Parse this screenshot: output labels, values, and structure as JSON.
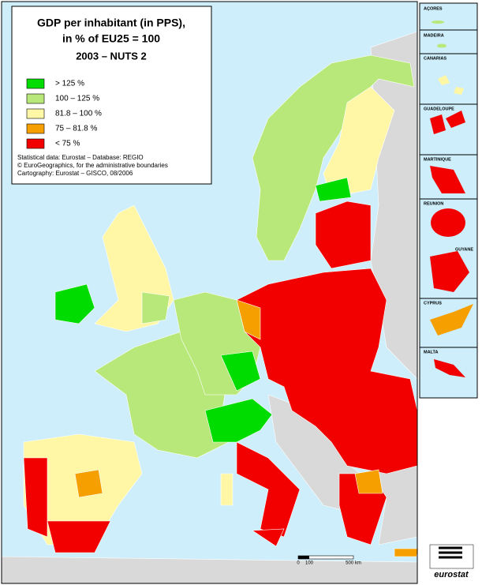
{
  "title": [
    "GDP per inhabitant (in PPS),",
    "in % of EU25 = 100",
    "2003 – NUTS 2"
  ],
  "legend": {
    "items": [
      {
        "label": "> 125 %",
        "color": "#00dc00"
      },
      {
        "label": "100  –  125 %",
        "color": "#b9e87a"
      },
      {
        "label": "81.8  –  100 %",
        "color": "#fff7a6"
      },
      {
        "label": "75  –  81.8 %",
        "color": "#f5a000"
      },
      {
        "label": "< 75 %",
        "color": "#f20000"
      }
    ]
  },
  "sources": [
    "Statistical data: Eurostat – Database: REGIO",
    "© EuroGeographics, for the administrative boundaries",
    "Cartography: Eurostat – GISCO, 08/2006"
  ],
  "insets": [
    "AÇORES",
    "MADEIRA",
    "CANARIAS",
    "GUADELOUPE",
    "MARTINIQUE",
    "REUNION",
    "GUYANE",
    "CYPRUS",
    "MALTA"
  ],
  "scale": [
    "0",
    "100",
    "500 km"
  ],
  "logo": "eurostat"
}
